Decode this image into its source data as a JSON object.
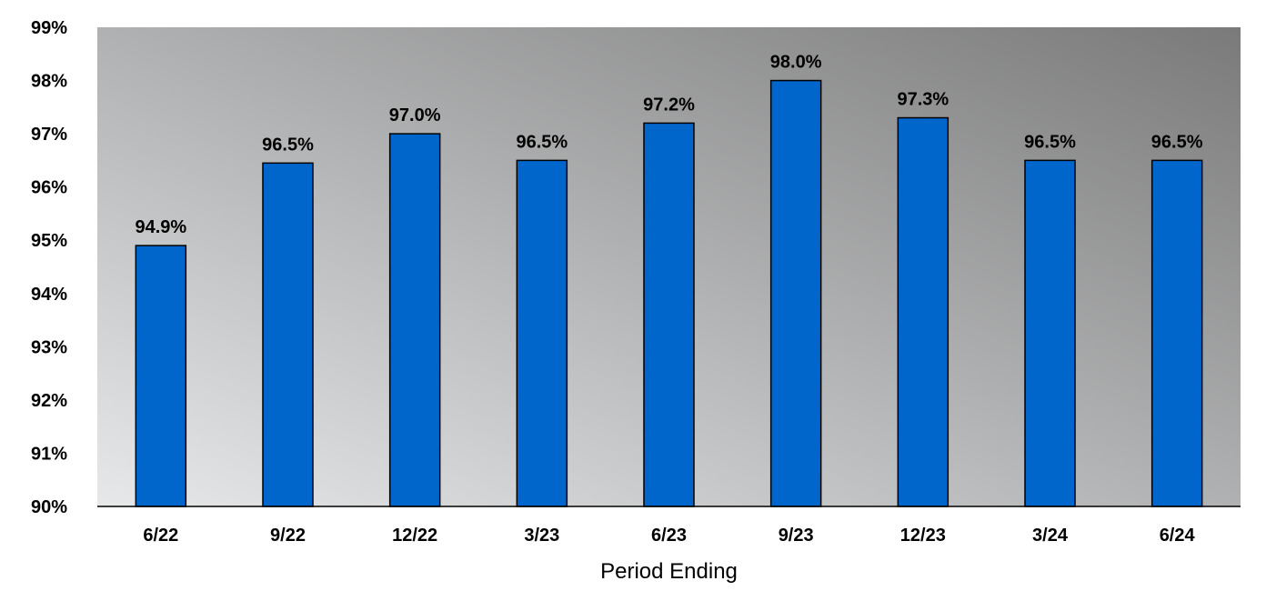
{
  "chart_data": {
    "type": "bar",
    "categories": [
      "6/22",
      "9/22",
      "12/22",
      "3/23",
      "6/23",
      "9/23",
      "12/23",
      "3/24",
      "6/24"
    ],
    "values": [
      94.9,
      96.45,
      97.0,
      96.5,
      97.2,
      98.0,
      97.3,
      96.5,
      96.5
    ],
    "data_labels": [
      "94.9%",
      "96.5%",
      "97.0%",
      "96.5%",
      "97.2%",
      "98.0%",
      "97.3%",
      "96.5%",
      "96.5%"
    ],
    "xlabel": "Period Ending",
    "ylabel": "",
    "ylim": [
      90,
      99
    ],
    "yticks": [
      90,
      91,
      92,
      93,
      94,
      95,
      96,
      97,
      98,
      99
    ],
    "ytick_labels": [
      "90%",
      "91%",
      "92%",
      "93%",
      "94%",
      "95%",
      "96%",
      "97%",
      "98%",
      "99%"
    ],
    "grid": false,
    "legend": "none",
    "colors": {
      "bar": "#0066CC",
      "bar_outline": "#000000",
      "plot_bg_light": "#E6E8EA",
      "plot_bg_dark": "#7A7A7A"
    }
  }
}
